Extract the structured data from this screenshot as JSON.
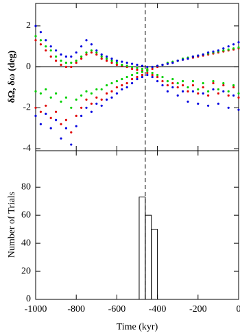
{
  "chart_data": [
    {
      "type": "scatter",
      "ylabel": "δΩ, δω (deg)",
      "x": [
        -1000,
        -975,
        -950,
        -925,
        -900,
        -875,
        -850,
        -825,
        -800,
        -775,
        -750,
        -725,
        -700,
        -675,
        -650,
        -625,
        -600,
        -575,
        -550,
        -525,
        -500,
        -475,
        -450,
        -425,
        -400,
        -375,
        -350,
        -325,
        -300,
        -275,
        -250,
        -225,
        -200,
        -175,
        -150,
        -125,
        -100,
        -75,
        -50,
        -25,
        0
      ],
      "xlim": [
        -1000,
        0
      ],
      "xticks": [
        -1000,
        -800,
        -600,
        -400,
        -200,
        0
      ],
      "ylim": [
        -4.1,
        3.1
      ],
      "yticks": [
        -4,
        -2,
        0,
        2
      ],
      "hline": 0,
      "vline": -460,
      "series": [
        {
          "color": "#e00000",
          "values": [
            1.3,
            1.1,
            0.8,
            0.5,
            0.3,
            0.1,
            0.0,
            0.0,
            0.2,
            0.4,
            0.6,
            0.7,
            0.6,
            0.4,
            0.3,
            0.2,
            0.1,
            0.05,
            0.0,
            -0.1,
            -0.15,
            -0.2,
            -0.15,
            -0.1,
            0.0,
            0.1,
            0.15,
            0.2,
            0.3,
            0.35,
            0.4,
            0.45,
            0.5,
            0.55,
            0.6,
            0.65,
            0.7,
            0.75,
            0.8,
            0.85,
            0.9
          ]
        },
        {
          "color": "#e00000",
          "values": [
            -2.0,
            -2.2,
            -1.9,
            -2.5,
            -2.2,
            -2.8,
            -2.6,
            -3.2,
            -2.4,
            -2.0,
            -1.6,
            -1.8,
            -1.5,
            -1.6,
            -1.3,
            -1.2,
            -1.0,
            -0.9,
            -0.8,
            -0.6,
            -0.5,
            -0.4,
            -0.3,
            -0.4,
            -0.5,
            -0.7,
            -0.9,
            -0.8,
            -1.0,
            -0.9,
            -1.2,
            -0.9,
            -1.3,
            -1.0,
            -1.4,
            -0.8,
            -1.3,
            -0.9,
            -1.4,
            -1.0,
            -1.5
          ]
        },
        {
          "color": "#00d000",
          "values": [
            1.5,
            1.3,
            1.0,
            0.8,
            0.5,
            0.3,
            0.2,
            0.2,
            0.3,
            0.5,
            0.7,
            0.8,
            0.7,
            0.5,
            0.4,
            0.3,
            0.2,
            0.1,
            0.05,
            0.0,
            -0.05,
            -0.1,
            -0.1,
            0.0,
            0.05,
            0.1,
            0.2,
            0.25,
            0.3,
            0.4,
            0.45,
            0.5,
            0.55,
            0.6,
            0.65,
            0.7,
            0.75,
            0.8,
            0.85,
            0.9,
            0.95
          ]
        },
        {
          "color": "#00d000",
          "values": [
            -1.2,
            -1.3,
            -1.1,
            -1.5,
            -1.3,
            -1.7,
            -1.5,
            -2.0,
            -1.6,
            -1.4,
            -1.2,
            -1.3,
            -1.1,
            -1.1,
            -0.9,
            -0.8,
            -0.7,
            -0.6,
            -0.5,
            -0.4,
            -0.3,
            -0.25,
            -0.2,
            -0.3,
            -0.4,
            -0.5,
            -0.7,
            -0.6,
            -0.8,
            -0.7,
            -1.0,
            -0.7,
            -1.1,
            -0.8,
            -1.2,
            -0.7,
            -1.1,
            -0.8,
            -1.2,
            -0.9,
            -1.3
          ]
        },
        {
          "color": "#0000e0",
          "values": [
            2.0,
            1.7,
            1.3,
            1.0,
            0.8,
            0.6,
            0.5,
            0.5,
            0.7,
            1.0,
            1.3,
            1.1,
            0.8,
            0.6,
            0.5,
            0.4,
            0.3,
            0.25,
            0.2,
            0.15,
            0.1,
            0.05,
            0.0,
            0.0,
            0.05,
            0.1,
            0.15,
            0.2,
            0.3,
            0.35,
            0.4,
            0.5,
            0.55,
            0.6,
            0.7,
            0.75,
            0.8,
            0.9,
            1.0,
            1.1,
            1.2
          ]
        },
        {
          "color": "#0000e0",
          "values": [
            -2.4,
            -2.8,
            -2.3,
            -3.0,
            -2.6,
            -3.5,
            -3.0,
            -3.8,
            -2.9,
            -2.4,
            -2.0,
            -2.2,
            -1.8,
            -1.9,
            -1.6,
            -1.5,
            -1.3,
            -1.1,
            -1.0,
            -0.8,
            -0.6,
            -0.5,
            -0.4,
            -0.5,
            -0.7,
            -0.9,
            -1.2,
            -1.0,
            -1.4,
            -1.2,
            -1.7,
            -1.2,
            -1.8,
            -1.3,
            -1.9,
            -1.1,
            -1.8,
            -1.2,
            -2.0,
            -1.4,
            -2.1
          ]
        }
      ]
    },
    {
      "type": "histogram",
      "ylabel": "Number of Trials",
      "xlabel": "Time (kyr)",
      "bins": [
        -490,
        -460,
        -430,
        -400
      ],
      "counts": [
        73,
        60,
        50
      ],
      "xlim": [
        -1000,
        0
      ],
      "xticks": [
        -1000,
        -800,
        -600,
        -400,
        -200,
        0
      ],
      "ylim": [
        0,
        106
      ],
      "yticks": [
        0,
        20,
        40,
        60,
        80
      ],
      "vline": -460,
      "color": "#000000"
    }
  ]
}
